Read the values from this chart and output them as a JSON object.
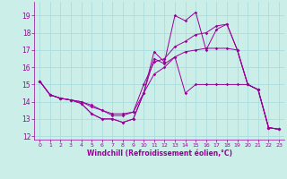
{
  "xlabel": "Windchill (Refroidissement éolien,°C)",
  "xlim": [
    -0.5,
    23.5
  ],
  "ylim": [
    11.8,
    19.8
  ],
  "yticks": [
    12,
    13,
    14,
    15,
    16,
    17,
    18,
    19
  ],
  "xticks": [
    0,
    1,
    2,
    3,
    4,
    5,
    6,
    7,
    8,
    9,
    10,
    11,
    12,
    13,
    14,
    15,
    16,
    17,
    18,
    19,
    20,
    21,
    22,
    23
  ],
  "bg_color": "#cceee8",
  "line_color": "#990099",
  "grid_color": "#aadddd",
  "series": [
    [
      15.2,
      14.4,
      14.2,
      14.1,
      13.9,
      13.3,
      13.0,
      13.0,
      12.8,
      13.0,
      14.5,
      16.9,
      16.3,
      19.0,
      18.7,
      19.2,
      17.0,
      18.2,
      18.5,
      17.0,
      15.0,
      14.7,
      12.5,
      12.4
    ],
    [
      15.2,
      14.4,
      14.2,
      14.1,
      14.0,
      13.8,
      13.5,
      13.3,
      13.3,
      13.4,
      15.0,
      16.3,
      16.5,
      17.2,
      17.5,
      17.9,
      18.0,
      18.4,
      18.5,
      17.0,
      15.0,
      14.7,
      12.5,
      12.4
    ],
    [
      15.2,
      14.4,
      14.2,
      14.1,
      14.0,
      13.7,
      13.5,
      13.2,
      13.2,
      13.4,
      14.5,
      15.6,
      16.0,
      16.6,
      16.9,
      17.0,
      17.1,
      17.1,
      17.1,
      17.0,
      15.0,
      14.7,
      12.5,
      12.4
    ],
    [
      15.2,
      14.4,
      14.2,
      14.1,
      13.9,
      13.3,
      13.0,
      13.0,
      12.8,
      13.0,
      14.5,
      16.5,
      16.2,
      16.6,
      14.5,
      15.0,
      15.0,
      15.0,
      15.0,
      15.0,
      15.0,
      14.7,
      12.5,
      12.4
    ]
  ]
}
